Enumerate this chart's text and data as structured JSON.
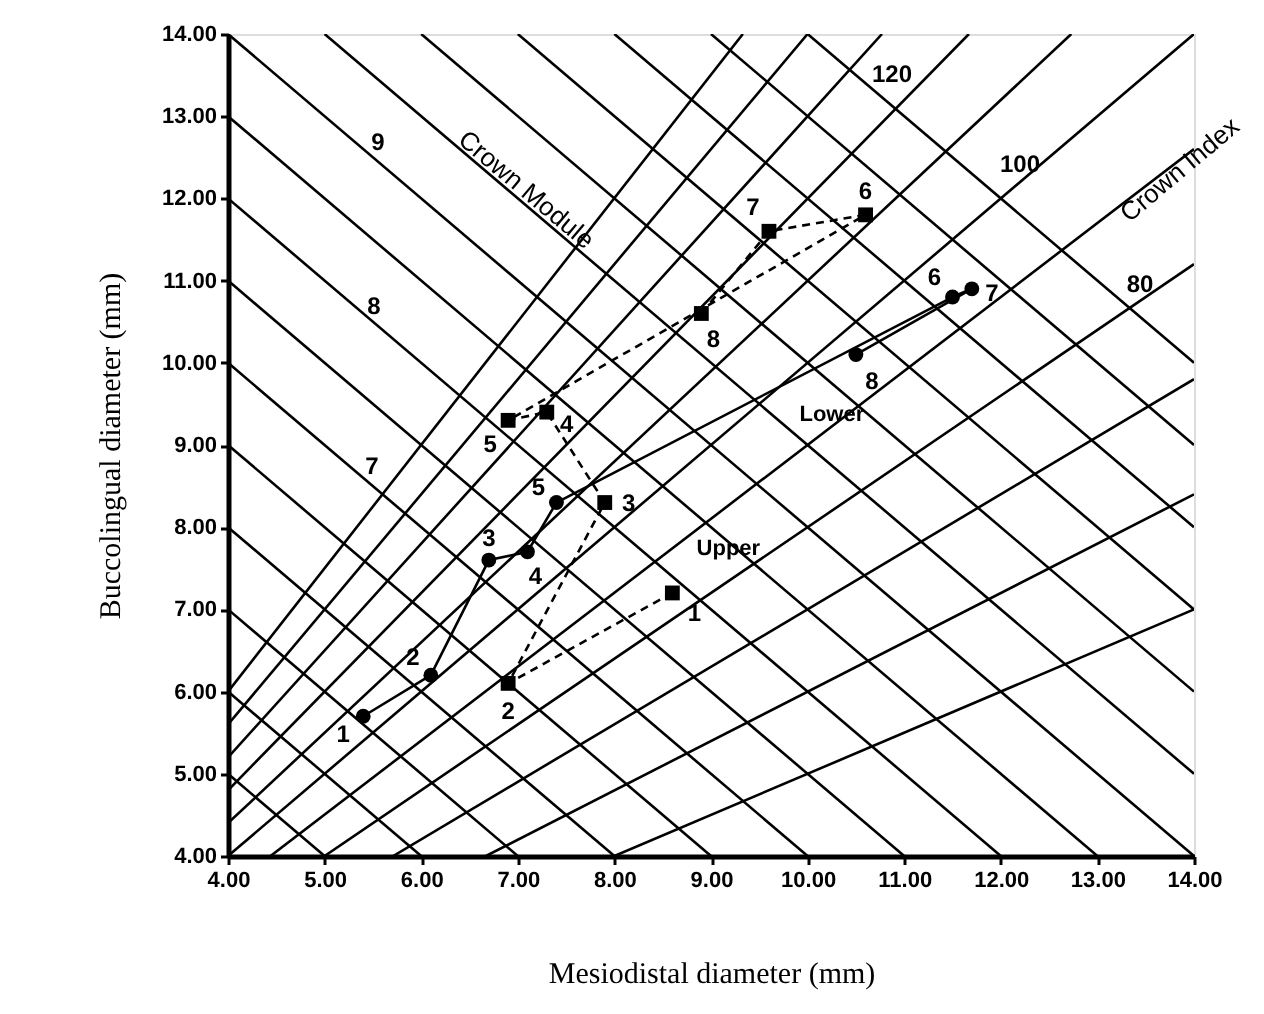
{
  "chart_data": {
    "type": "line",
    "xlabel": "Mesiodistal diameter (mm)",
    "ylabel": "Buccolingual diameter (mm)",
    "xlim": [
      4,
      14
    ],
    "ylim": [
      4,
      14
    ],
    "xticks": [
      {
        "value": 4,
        "label": "4.00"
      },
      {
        "value": 5,
        "label": "5.00"
      },
      {
        "value": 6,
        "label": "6.00"
      },
      {
        "value": 7,
        "label": "7.00"
      },
      {
        "value": 8,
        "label": "8.00"
      },
      {
        "value": 9,
        "label": "9.00"
      },
      {
        "value": 10,
        "label": "10.00"
      },
      {
        "value": 11,
        "label": "11.00"
      },
      {
        "value": 12,
        "label": "12.00"
      },
      {
        "value": 13,
        "label": "13.00"
      },
      {
        "value": 14,
        "label": "14.00"
      }
    ],
    "yticks": [
      {
        "value": 4,
        "label": "4.00"
      },
      {
        "value": 5,
        "label": "5.00"
      },
      {
        "value": 6,
        "label": "6.00"
      },
      {
        "value": 7,
        "label": "7.00"
      },
      {
        "value": 8,
        "label": "8.00"
      },
      {
        "value": 9,
        "label": "9.00"
      },
      {
        "value": 10,
        "label": "10.00"
      },
      {
        "value": 11,
        "label": "11.00"
      },
      {
        "value": 12,
        "label": "12.00"
      },
      {
        "value": 13,
        "label": "13.00"
      },
      {
        "value": 14,
        "label": "14.00"
      }
    ],
    "grid": false,
    "legend": false,
    "series": [
      {
        "type": "line",
        "color": "#000000",
        "marker": "none",
        "line_style": "solid",
        "x": [
          4,
          5
        ],
        "values": [
          5,
          4
        ]
      },
      {
        "type": "line",
        "color": "#000000",
        "marker": "none",
        "line_style": "solid",
        "x": [
          4,
          6
        ],
        "values": [
          6,
          4
        ]
      },
      {
        "type": "line",
        "color": "#000000",
        "marker": "none",
        "line_style": "solid",
        "x": [
          4,
          7
        ],
        "values": [
          7,
          4
        ]
      },
      {
        "type": "line",
        "color": "#000000",
        "marker": "none",
        "line_style": "solid",
        "x": [
          4,
          8
        ],
        "values": [
          8,
          4
        ]
      },
      {
        "type": "line",
        "color": "#000000",
        "marker": "none",
        "line_style": "solid",
        "x": [
          4,
          9
        ],
        "values": [
          9,
          4
        ]
      },
      {
        "type": "line",
        "color": "#000000",
        "marker": "none",
        "line_style": "solid",
        "x": [
          4,
          10
        ],
        "values": [
          10,
          4
        ]
      },
      {
        "type": "line",
        "color": "#000000",
        "marker": "none",
        "line_style": "solid",
        "x": [
          4,
          11
        ],
        "values": [
          11,
          4
        ]
      },
      {
        "type": "line",
        "color": "#000000",
        "marker": "none",
        "line_style": "solid",
        "x": [
          4,
          12
        ],
        "values": [
          12,
          4
        ]
      },
      {
        "type": "line",
        "color": "#000000",
        "marker": "none",
        "line_style": "solid",
        "x": [
          4,
          13
        ],
        "values": [
          13,
          4
        ]
      },
      {
        "type": "line",
        "color": "#000000",
        "marker": "none",
        "line_style": "solid",
        "x": [
          4,
          14
        ],
        "values": [
          14,
          4
        ]
      },
      {
        "type": "line",
        "color": "#000000",
        "marker": "none",
        "line_style": "solid",
        "x": [
          5,
          14
        ],
        "values": [
          14,
          5
        ]
      },
      {
        "type": "line",
        "color": "#000000",
        "marker": "none",
        "line_style": "solid",
        "x": [
          6,
          14
        ],
        "values": [
          14,
          6
        ]
      },
      {
        "type": "line",
        "color": "#000000",
        "marker": "none",
        "line_style": "solid",
        "x": [
          7,
          14
        ],
        "values": [
          14,
          7
        ]
      },
      {
        "type": "line",
        "color": "#000000",
        "marker": "none",
        "line_style": "solid",
        "x": [
          8,
          14
        ],
        "values": [
          14,
          8
        ]
      },
      {
        "type": "line",
        "color": "#000000",
        "marker": "none",
        "line_style": "solid",
        "x": [
          9,
          14
        ],
        "values": [
          14,
          9
        ]
      },
      {
        "type": "line",
        "color": "#000000",
        "marker": "none",
        "line_style": "solid",
        "x": [
          10,
          14
        ],
        "values": [
          14,
          10
        ]
      },
      {
        "type": "line",
        "color": "#000000",
        "marker": "none",
        "line_style": "solid",
        "x": [
          8,
          14
        ],
        "values": [
          4,
          7
        ]
      },
      {
        "type": "line",
        "color": "#000000",
        "marker": "none",
        "line_style": "solid",
        "x": [
          6.67,
          14
        ],
        "values": [
          4,
          8.4
        ]
      },
      {
        "type": "line",
        "color": "#000000",
        "marker": "none",
        "line_style": "solid",
        "x": [
          5.71,
          14
        ],
        "values": [
          4,
          9.8
        ]
      },
      {
        "type": "line",
        "color": "#000000",
        "marker": "none",
        "line_style": "solid",
        "x": [
          5,
          14
        ],
        "values": [
          4,
          11.2
        ]
      },
      {
        "type": "line",
        "color": "#000000",
        "marker": "none",
        "line_style": "solid",
        "x": [
          4.44,
          14
        ],
        "values": [
          4,
          12.6
        ]
      },
      {
        "type": "line",
        "color": "#000000",
        "marker": "none",
        "line_style": "solid",
        "x": [
          4,
          14
        ],
        "values": [
          4,
          14
        ]
      },
      {
        "type": "line",
        "color": "#000000",
        "marker": "none",
        "line_style": "solid",
        "x": [
          4,
          12.73
        ],
        "values": [
          4.4,
          14
        ]
      },
      {
        "type": "line",
        "color": "#000000",
        "marker": "none",
        "line_style": "solid",
        "x": [
          4,
          11.67
        ],
        "values": [
          4.8,
          14
        ]
      },
      {
        "type": "line",
        "color": "#000000",
        "marker": "none",
        "line_style": "solid",
        "x": [
          4,
          10.77
        ],
        "values": [
          5.2,
          14
        ]
      },
      {
        "type": "line",
        "color": "#000000",
        "marker": "none",
        "line_style": "solid",
        "x": [
          4,
          10
        ],
        "values": [
          5.6,
          14
        ]
      },
      {
        "type": "line",
        "color": "#000000",
        "marker": "none",
        "line_style": "solid",
        "x": [
          4,
          9.33
        ],
        "values": [
          6,
          14
        ]
      },
      {
        "name": "Upper",
        "color": "#000000",
        "marker": "square",
        "line_style": "dashed",
        "x": [
          8.6,
          6.9,
          7.9,
          7.3,
          6.9,
          10.6,
          9.6,
          8.9
        ],
        "values": [
          7.2,
          6.1,
          8.3,
          9.4,
          9.3,
          11.8,
          11.6,
          10.6
        ]
      },
      {
        "name": "Lower",
        "color": "#000000",
        "marker": "circle",
        "line_style": "solid",
        "x": [
          5.4,
          6.1,
          6.7,
          7.1,
          7.4,
          11.5,
          11.7,
          10.5
        ],
        "values": [
          5.7,
          6.2,
          7.6,
          7.7,
          8.3,
          10.8,
          10.9,
          10.1
        ]
      }
    ],
    "annotations": [
      "9",
      "8",
      "7",
      "Crown Module",
      "120",
      "100",
      "80",
      "Crown Index",
      {
        "text": "1",
        "x": 8.6,
        "y": 7.2
      },
      {
        "text": "2",
        "x": 6.9,
        "y": 6.1
      },
      {
        "text": "3",
        "x": 7.9,
        "y": 8.3
      },
      {
        "text": "4",
        "x": 7.3,
        "y": 9.4
      },
      {
        "text": "5",
        "x": 6.9,
        "y": 9.3
      },
      {
        "text": "6",
        "x": 10.6,
        "y": 11.8
      },
      {
        "text": "7",
        "x": 9.6,
        "y": 11.6
      },
      {
        "text": "8",
        "x": 8.9,
        "y": 10.6
      },
      {
        "text": "1",
        "x": 5.4,
        "y": 5.7
      },
      {
        "text": "2",
        "x": 6.1,
        "y": 6.2
      },
      {
        "text": "3",
        "x": 6.7,
        "y": 7.6
      },
      {
        "text": "4",
        "x": 7.1,
        "y": 7.7
      },
      {
        "text": "5",
        "x": 7.4,
        "y": 8.3
      },
      {
        "text": "6",
        "x": 11.5,
        "y": 10.8
      },
      {
        "text": "7",
        "x": 11.7,
        "y": 10.9
      },
      {
        "text": "8",
        "x": 10.5,
        "y": 10.1
      }
    ]
  }
}
